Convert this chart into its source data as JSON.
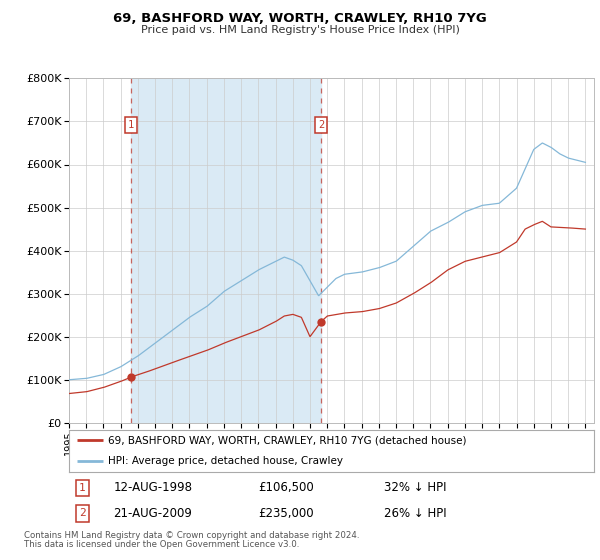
{
  "title": "69, BASHFORD WAY, WORTH, CRAWLEY, RH10 7YG",
  "subtitle": "Price paid vs. HM Land Registry's House Price Index (HPI)",
  "sale1_date": 1998.617,
  "sale1_price": 106500,
  "sale1_label": "12-AUG-1998",
  "sale1_pct": "32%",
  "sale2_date": 2009.642,
  "sale2_price": 235000,
  "sale2_label": "21-AUG-2009",
  "sale2_pct": "26%",
  "legend_line1": "69, BASHFORD WAY, WORTH, CRAWLEY, RH10 7YG (detached house)",
  "legend_line2": "HPI: Average price, detached house, Crawley",
  "footnote1": "Contains HM Land Registry data © Crown copyright and database right 2024.",
  "footnote2": "This data is licensed under the Open Government Licence v3.0.",
  "red_color": "#c0392b",
  "blue_color": "#85b8d8",
  "bg_shade_color": "#daeaf5",
  "grid_color": "#cccccc",
  "ylim_min": 0,
  "ylim_max": 800000,
  "xmin": 1995.0,
  "xmax": 2025.5,
  "hpi_anchors_t": [
    1995.0,
    1996.0,
    1997.0,
    1998.0,
    1999.0,
    2000.0,
    2001.0,
    2002.0,
    2003.0,
    2004.0,
    2005.0,
    2006.0,
    2007.0,
    2007.5,
    2008.0,
    2008.5,
    2009.0,
    2009.5,
    2010.0,
    2010.5,
    2011.0,
    2012.0,
    2013.0,
    2014.0,
    2015.0,
    2016.0,
    2017.0,
    2018.0,
    2019.0,
    2020.0,
    2021.0,
    2021.5,
    2022.0,
    2022.5,
    2023.0,
    2023.5,
    2024.0,
    2025.0
  ],
  "hpi_anchors_v": [
    100000,
    103000,
    112000,
    130000,
    155000,
    185000,
    215000,
    245000,
    270000,
    305000,
    330000,
    355000,
    375000,
    385000,
    378000,
    365000,
    330000,
    295000,
    315000,
    335000,
    345000,
    350000,
    360000,
    375000,
    410000,
    445000,
    465000,
    490000,
    505000,
    510000,
    545000,
    590000,
    635000,
    650000,
    640000,
    625000,
    615000,
    605000
  ],
  "prop_anchors_t": [
    1995.0,
    1996.0,
    1997.0,
    1998.0,
    1998.617,
    1999.5,
    2001.0,
    2003.0,
    2004.0,
    2005.0,
    2006.0,
    2007.0,
    2007.5,
    2008.0,
    2008.5,
    2009.0,
    2009.642,
    2010.0,
    2011.0,
    2012.0,
    2013.0,
    2014.0,
    2015.0,
    2016.0,
    2017.0,
    2018.0,
    2019.0,
    2020.0,
    2021.0,
    2021.5,
    2022.0,
    2022.5,
    2023.0,
    2024.0,
    2025.0
  ],
  "prop_anchors_v": [
    68000,
    72000,
    82000,
    96000,
    106500,
    118000,
    140000,
    168000,
    185000,
    200000,
    215000,
    235000,
    248000,
    252000,
    245000,
    200000,
    235000,
    248000,
    255000,
    258000,
    265000,
    278000,
    300000,
    325000,
    355000,
    375000,
    385000,
    395000,
    420000,
    450000,
    460000,
    468000,
    455000,
    453000,
    450000
  ]
}
